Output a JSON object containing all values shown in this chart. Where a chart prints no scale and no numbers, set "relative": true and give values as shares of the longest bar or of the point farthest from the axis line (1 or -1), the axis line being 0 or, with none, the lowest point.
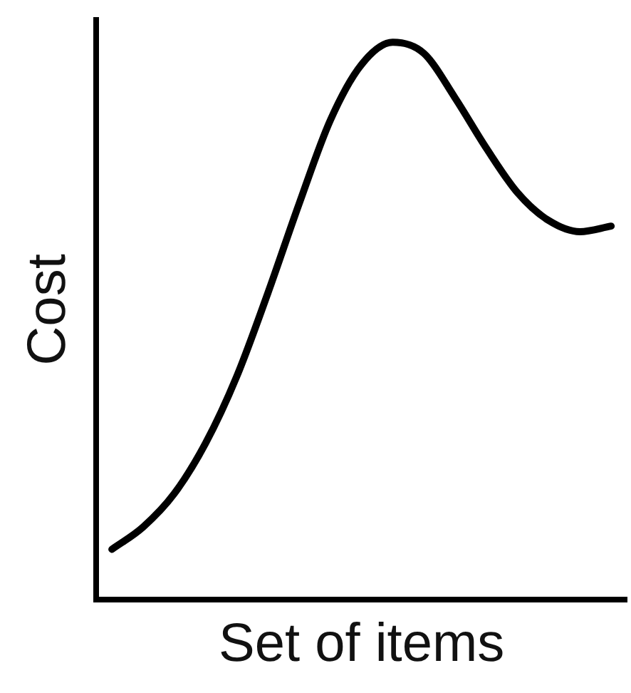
{
  "chart_data": {
    "type": "line",
    "relative": true,
    "xlabel": "Set of items",
    "ylabel": "Cost",
    "categories": [
      null,
      null,
      null,
      null,
      null,
      null,
      null,
      null,
      null,
      null,
      null,
      null,
      null,
      null,
      null,
      null,
      null
    ],
    "series": [
      {
        "color": "#000000",
        "values": [
          0.09,
          0.13,
          0.19,
          0.28,
          0.4,
          0.55,
          0.71,
          0.86,
          0.96,
          1,
          0.98,
          0.9,
          0.81,
          0.73,
          0.68,
          0.66,
          0.67
        ]
      }
    ],
    "grid": false,
    "legend": false,
    "marker": "none",
    "line_style": "solid",
    "tick_labels": false
  }
}
